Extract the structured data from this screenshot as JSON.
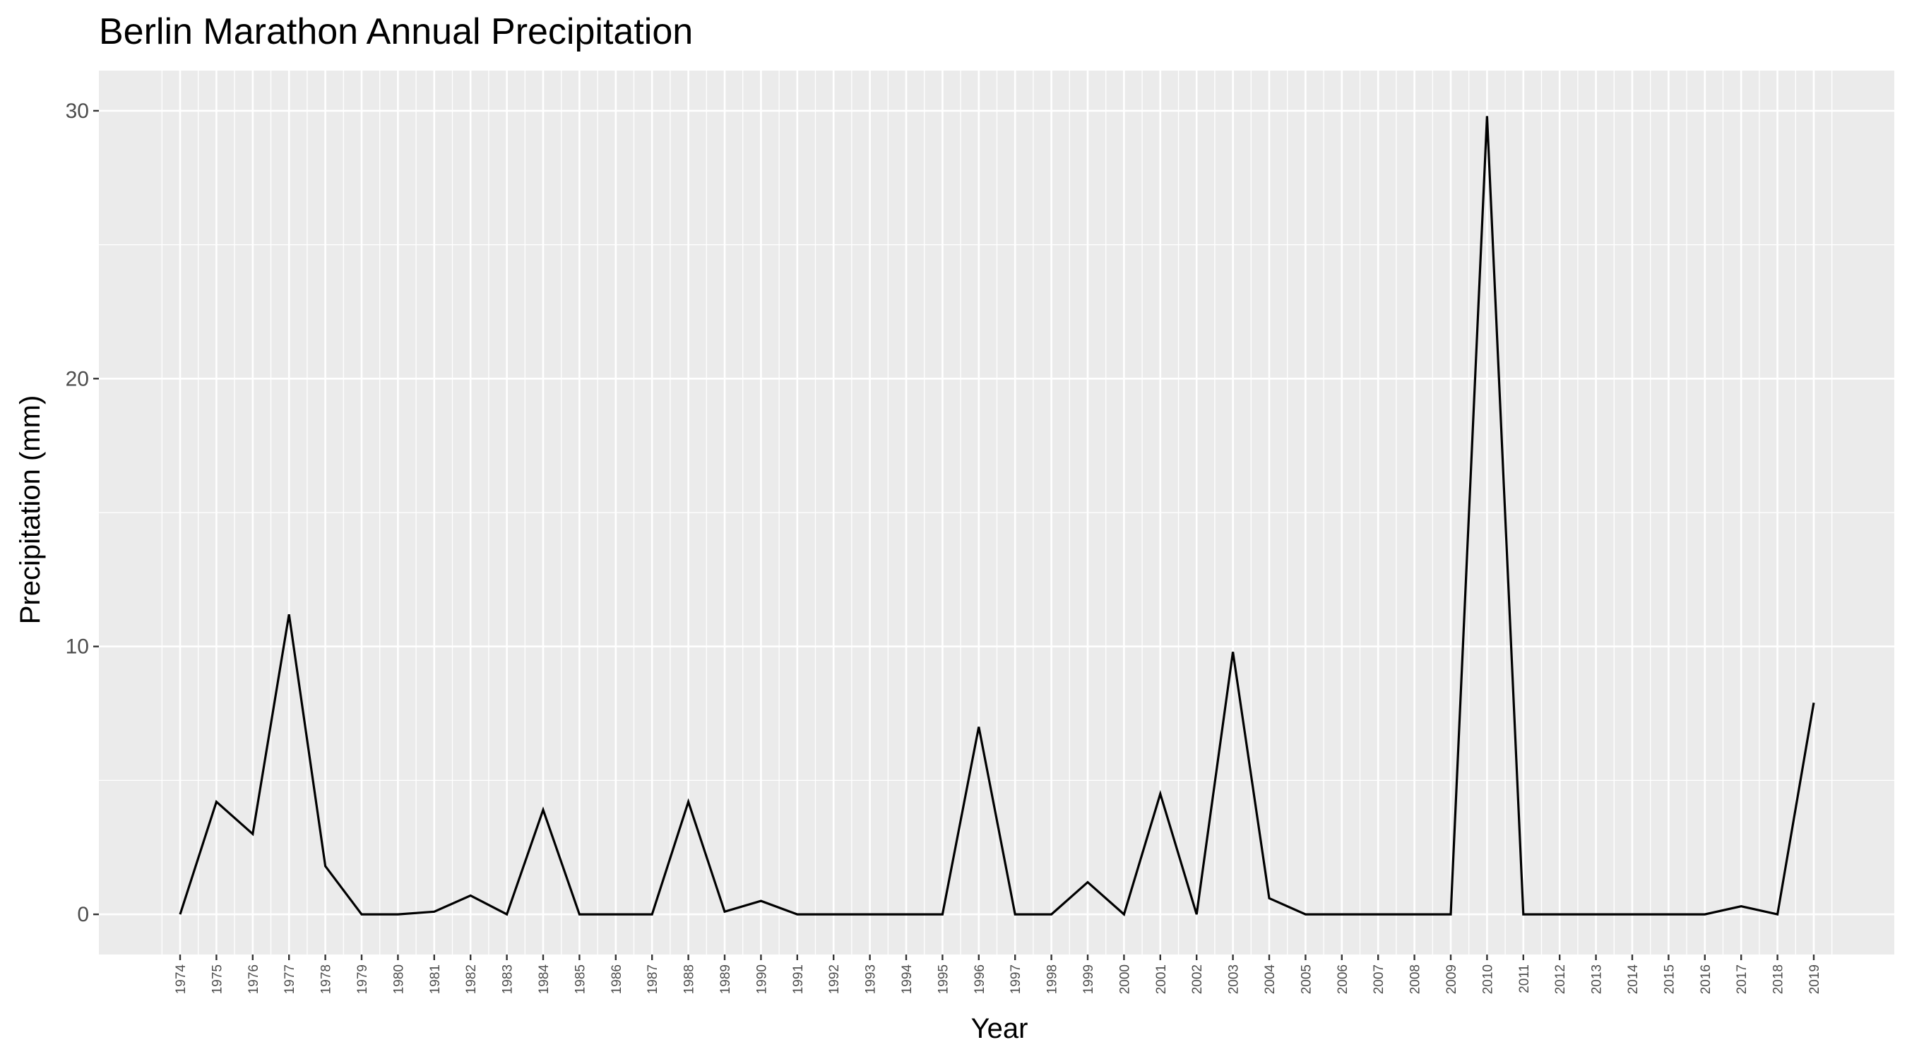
{
  "chart_data": {
    "type": "line",
    "title": "Berlin Marathon Annual Precipitation",
    "xlabel": "Year",
    "ylabel": "Precipitation (mm)",
    "x": [
      "1974",
      "1975",
      "1976",
      "1977",
      "1978",
      "1979",
      "1980",
      "1981",
      "1982",
      "1983",
      "1984",
      "1985",
      "1986",
      "1987",
      "1988",
      "1989",
      "1990",
      "1991",
      "1992",
      "1993",
      "1994",
      "1995",
      "1996",
      "1997",
      "1998",
      "1999",
      "2000",
      "2001",
      "2002",
      "2003",
      "2004",
      "2005",
      "2006",
      "2007",
      "2008",
      "2009",
      "2010",
      "2011",
      "2012",
      "2013",
      "2014",
      "2015",
      "2016",
      "2017",
      "2018",
      "2019"
    ],
    "values": [
      0,
      4.2,
      3.0,
      11.2,
      1.8,
      0,
      0,
      0.1,
      0.7,
      0,
      3.9,
      0,
      0,
      0,
      4.2,
      0.1,
      0.5,
      0,
      0,
      0,
      0,
      0,
      7.0,
      0,
      0,
      1.2,
      0,
      4.5,
      0,
      9.8,
      0.6,
      0,
      0,
      0,
      0,
      0,
      29.8,
      0,
      0,
      0,
      0,
      0,
      0,
      0.3,
      0,
      7.9
    ],
    "ylim": [
      -1.5,
      31.5
    ],
    "yticks": [
      0,
      10,
      20,
      30
    ],
    "grid": true,
    "colors": {
      "panel": "#ebebeb",
      "grid": "#ffffff",
      "line": "#000000",
      "tick_text": "#4d4d4d"
    }
  }
}
